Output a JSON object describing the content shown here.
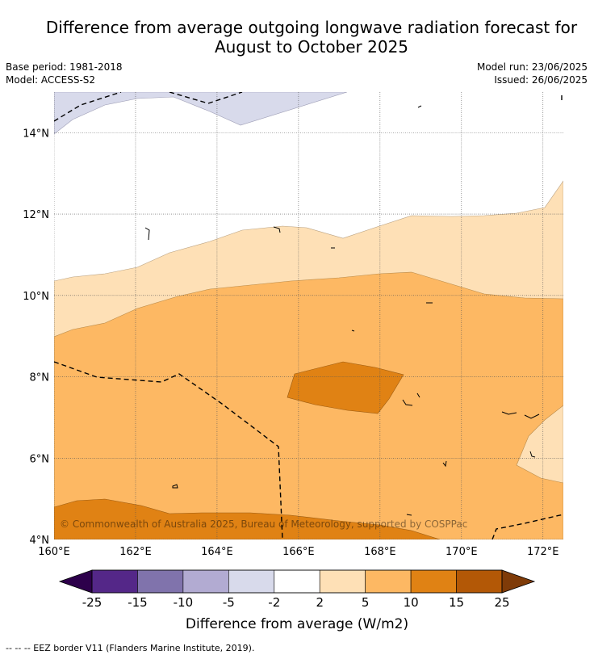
{
  "title": "Difference from average outgoing longwave radiation forecast for August to October 2025",
  "title_lines": [
    "Difference from average outgoing longwave radiation forecast for",
    "August to October 2025"
  ],
  "base_period": "Base period: 1981-2018",
  "model": "Model: ACCESS-S2",
  "model_run": "Model run: 23/06/2025",
  "issued": "Issued: 26/06/2025",
  "copyright": "© Commonwealth of Australia 2025, Bureau of Meteorology, supported by COSPPac",
  "footnote": "--  --  -- EEZ border V11 (Flanders Marine Institute, 2019).",
  "map": {
    "lon_range": [
      160,
      172.5
    ],
    "lat_range": [
      4,
      15
    ],
    "lon_ticks": [
      {
        "value": 160,
        "label": "160°E"
      },
      {
        "value": 162,
        "label": "162°E"
      },
      {
        "value": 164,
        "label": "164°E"
      },
      {
        "value": 166,
        "label": "166°E"
      },
      {
        "value": 168,
        "label": "168°E"
      },
      {
        "value": 170,
        "label": "170°E"
      },
      {
        "value": 172,
        "label": "172°E"
      }
    ],
    "lat_ticks": [
      {
        "value": 4,
        "label": "4°N"
      },
      {
        "value": 6,
        "label": "6°N"
      },
      {
        "value": 8,
        "label": "8°N"
      },
      {
        "value": 10,
        "label": "10°N"
      },
      {
        "value": 12,
        "label": "12°N"
      },
      {
        "value": 14,
        "label": "14°N"
      }
    ]
  },
  "colorbar": {
    "label": "Difference from average (W/m2)",
    "ticks": [
      "-25",
      "-15",
      "-10",
      "-5",
      "-2",
      "2",
      "5",
      "10",
      "15",
      "25"
    ],
    "under_color": "#2d004b",
    "over_color": "#7f3b08",
    "colors": [
      "#542788",
      "#8073ac",
      "#b2abd2",
      "#d8daeb",
      "#ffffff",
      "#fee0b6",
      "#fdb863",
      "#e08214",
      "#b35806"
    ]
  },
  "fills": {
    "neg_2_to_neg_5": "#d8daeb",
    "pos_2_to_5": "#fee0b6",
    "pos_5_to_10": "#fdb863",
    "pos_10_to_15": "#e08214"
  }
}
